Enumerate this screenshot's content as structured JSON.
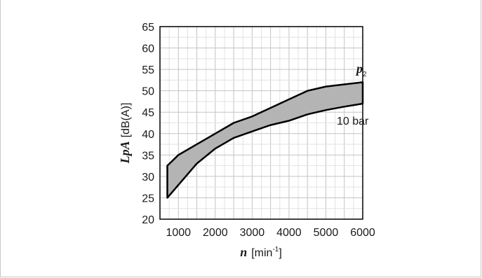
{
  "chart_data": {
    "type": "area",
    "x_label": {
      "var": "n",
      "unit_open": "[min",
      "unit_sup": "-1",
      "unit_close": "]"
    },
    "y_label": {
      "var": "LpA",
      "unit": "[dB(A)]"
    },
    "xlim": [
      500,
      6000
    ],
    "ylim": [
      20,
      65
    ],
    "x_ticks": [
      1000,
      2000,
      3000,
      4000,
      5000,
      6000
    ],
    "y_ticks": [
      20,
      25,
      30,
      35,
      40,
      45,
      50,
      55,
      60,
      65
    ],
    "grid": true,
    "upper_boundary": {
      "name": "p",
      "name_sub": "2",
      "x": [
        700,
        1000,
        1500,
        2000,
        2500,
        3000,
        3500,
        4000,
        4500,
        5000,
        5500,
        6000
      ],
      "y": [
        32.5,
        35,
        37.5,
        40,
        42.5,
        44,
        46,
        48,
        50,
        51,
        51.5,
        52
      ]
    },
    "lower_boundary": {
      "name": "10 bar",
      "x": [
        700,
        1000,
        1500,
        2000,
        2500,
        3000,
        3500,
        4000,
        4500,
        5000,
        5500,
        6000
      ],
      "y": [
        25,
        28,
        33,
        36.5,
        39,
        40.5,
        42,
        43,
        44.5,
        45.5,
        46.3,
        47
      ]
    },
    "fill_color": "#b4b4b4",
    "line_color": "#000000"
  }
}
